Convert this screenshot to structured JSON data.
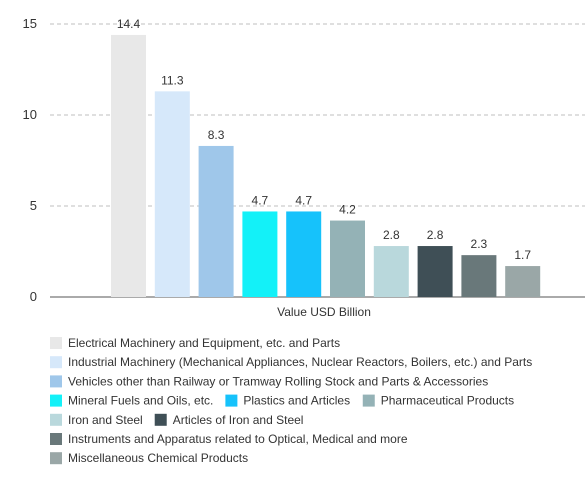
{
  "chart_data": {
    "type": "bar",
    "xlabel": "Value USD Billion",
    "ylabel": "",
    "ylim": [
      0,
      15
    ],
    "yticks": [
      0,
      5,
      10,
      15
    ],
    "grid": true,
    "legend_position": "bottom",
    "series": [
      {
        "name": "Electrical Machinery and Equipment, etc. and Parts",
        "value": 14.4,
        "color": "#e8e8e8"
      },
      {
        "name": "Industrial Machinery (Mechanical Appliances, Nuclear Reactors, Boilers, etc.) and Parts",
        "value": 11.3,
        "color": "#d6e8fa"
      },
      {
        "name": "Vehicles other than Railway or Tramway Rolling Stock and Parts & Accessories",
        "value": 8.3,
        "color": "#9fc7ea"
      },
      {
        "name": "Mineral Fuels and Oils, etc.",
        "value": 4.7,
        "color": "#13f1f8"
      },
      {
        "name": "Plastics and Articles",
        "value": 4.7,
        "color": "#16c2fb"
      },
      {
        "name": "Pharmaceutical Products",
        "value": 4.2,
        "color": "#94b2b6"
      },
      {
        "name": "Iron and Steel",
        "value": 2.8,
        "color": "#b9d8dc"
      },
      {
        "name": "Articles of Iron and Steel",
        "value": 2.8,
        "color": "#3f4f56"
      },
      {
        "name": "Instruments and Apparatus related to Optical, Medical and more",
        "value": 2.3,
        "color": "#69787a"
      },
      {
        "name": "Miscellaneous Chemical Products",
        "value": 1.7,
        "color": "#9aa7a7"
      }
    ],
    "data_labels": [
      "14.4",
      "11.3",
      "8.3",
      "4.7",
      "4.7",
      "4.2",
      "2.8",
      "2.8",
      "2.3",
      "1.7"
    ]
  }
}
